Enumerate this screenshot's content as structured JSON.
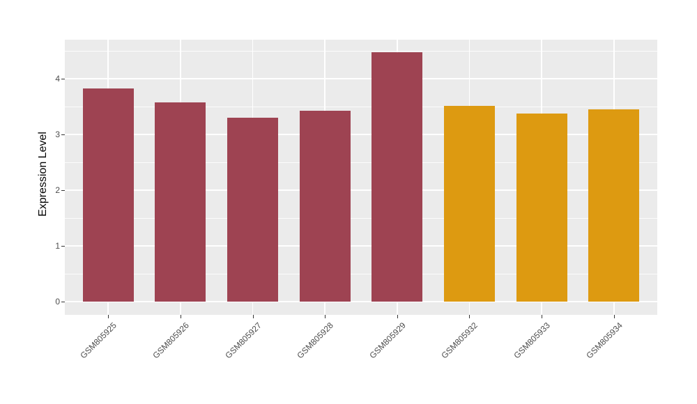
{
  "chart_data": {
    "type": "bar",
    "title": "",
    "xlabel": "",
    "ylabel": "Expression Level",
    "categories": [
      "GSM805925",
      "GSM805926",
      "GSM805927",
      "GSM805928",
      "GSM805929",
      "GSM805932",
      "GSM805933",
      "GSM805934"
    ],
    "values": [
      3.83,
      3.58,
      3.3,
      3.43,
      4.48,
      3.51,
      3.38,
      3.45
    ],
    "bar_colors": [
      "#9E4352",
      "#9E4352",
      "#9E4352",
      "#9E4352",
      "#9E4352",
      "#DD9A11",
      "#DD9A11",
      "#DD9A11"
    ],
    "group_colors": {
      "maroon": "#9E4352",
      "orange": "#DD9A11"
    },
    "yticks": [
      0,
      1,
      2,
      3,
      4
    ],
    "ytick_labels": [
      "0",
      "1",
      "2",
      "3",
      "4"
    ],
    "yticks_minor": [
      0.5,
      1.5,
      2.5,
      3.5,
      4.5
    ],
    "ylim": [
      0,
      4.48
    ],
    "ylim_rendered": [
      -0.2375,
      4.7
    ],
    "x_tick_angle_deg": 45,
    "grid": "horizontal major+minor, vertical major at category centers",
    "legend": "none",
    "panel_bg": "#EBEBEB",
    "grid_color": "#FFFFFF",
    "tick_label_color": "#4D4D4D",
    "axis_title_color": "#000000"
  }
}
